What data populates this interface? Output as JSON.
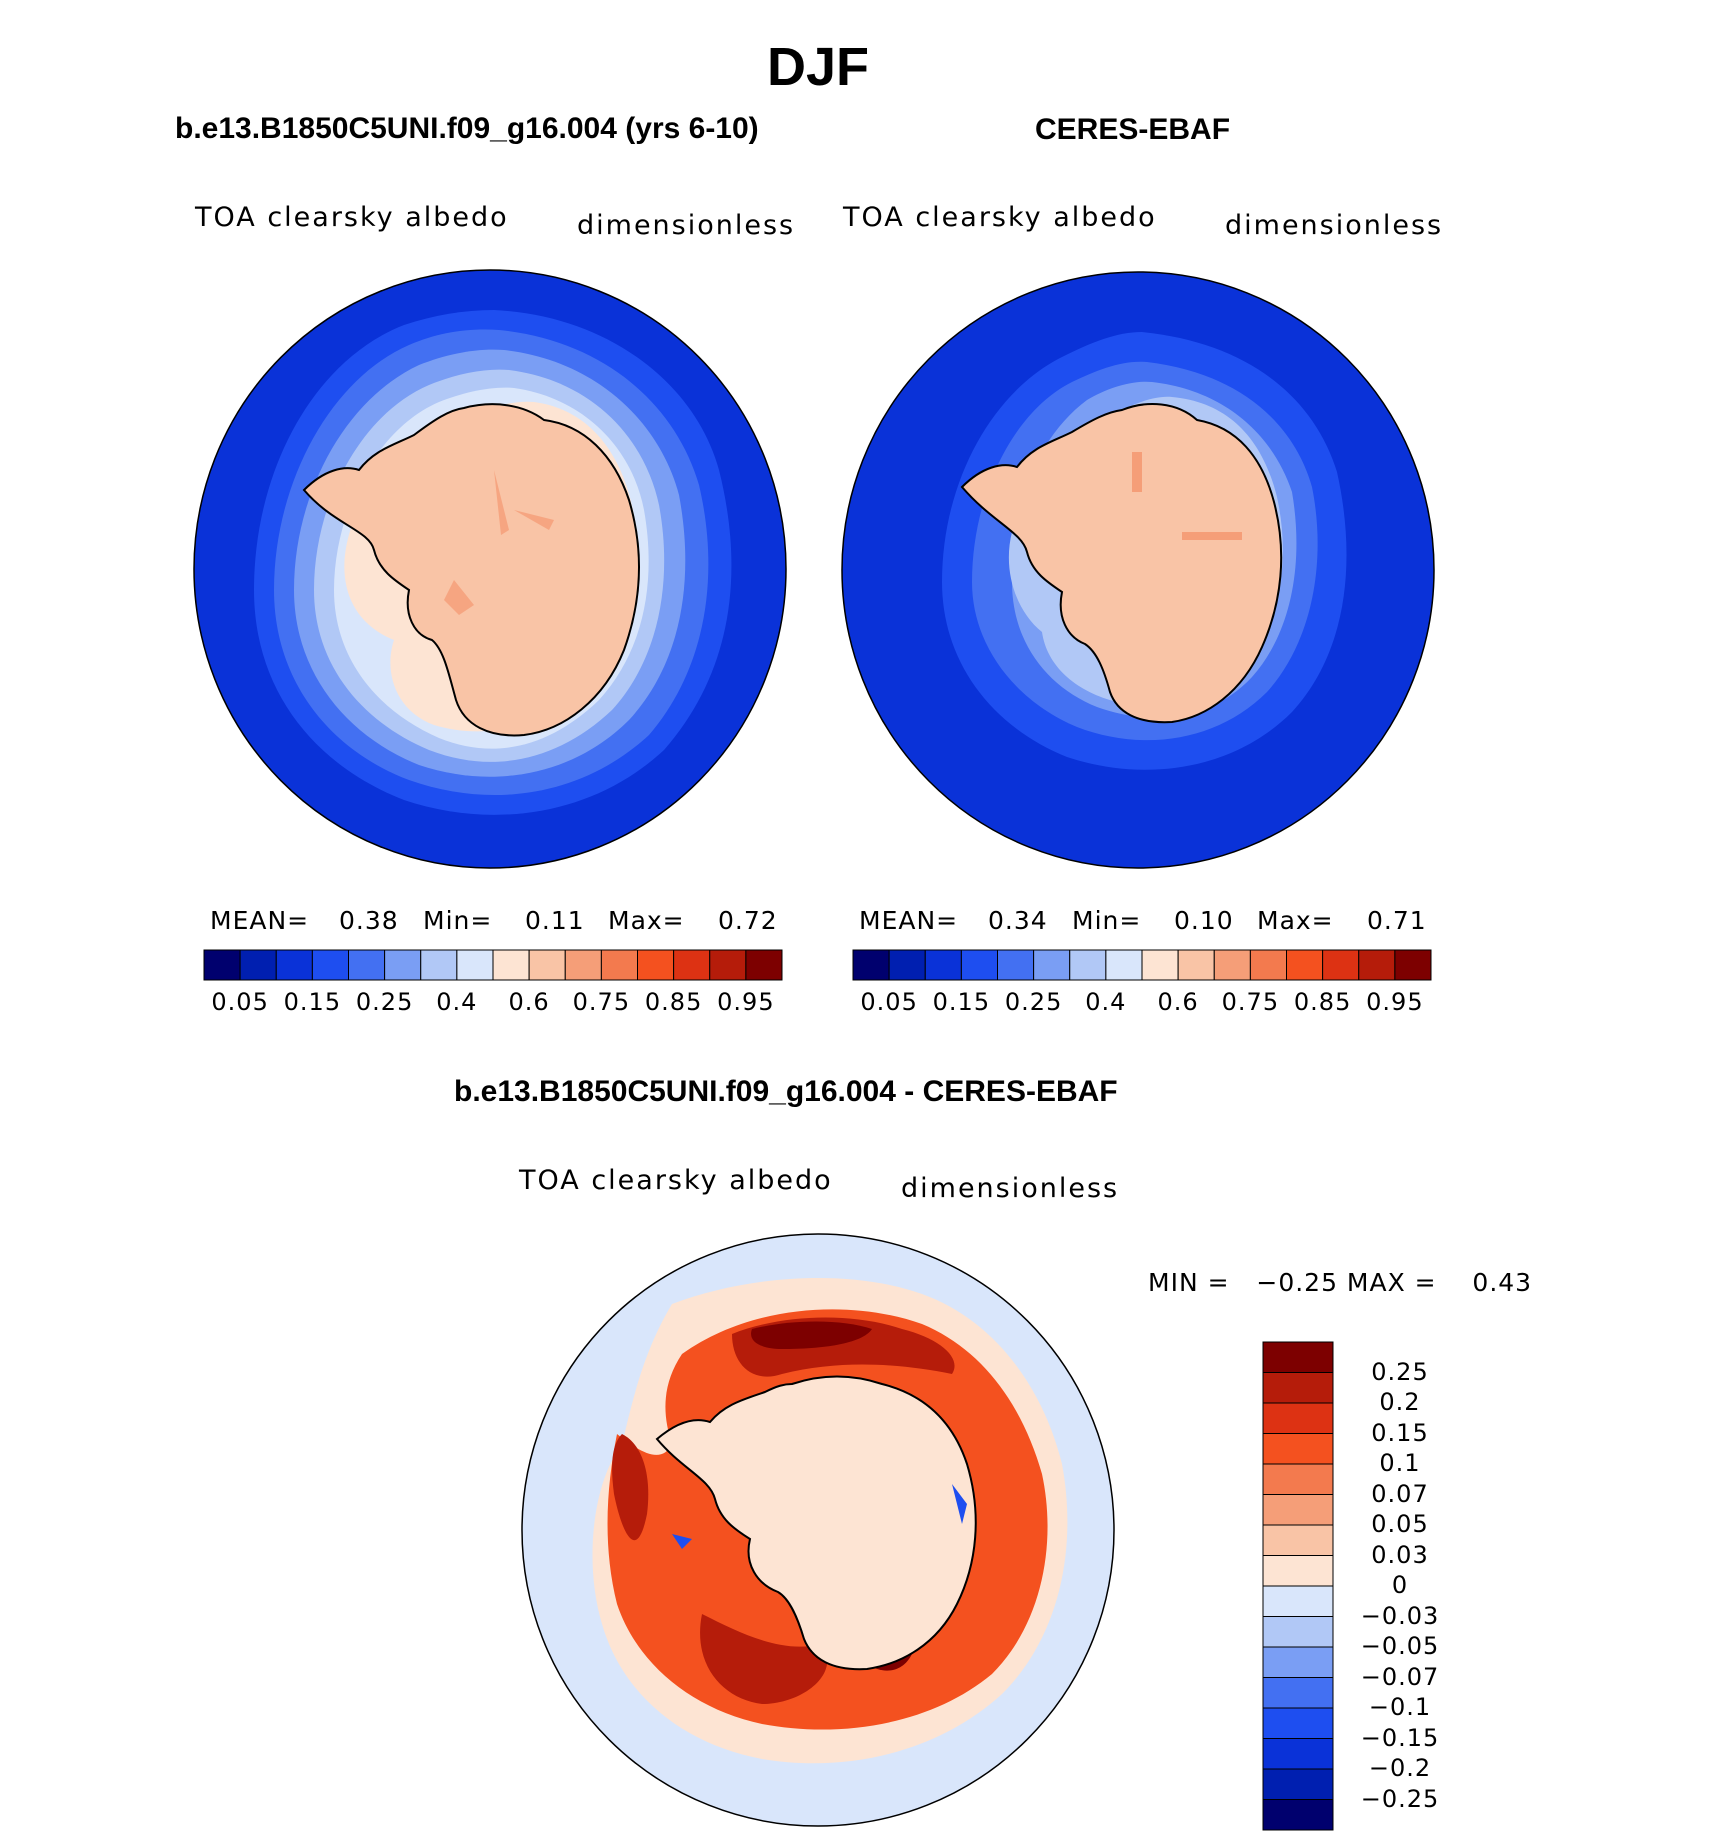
{
  "page": {
    "title": "DJF",
    "diff_title": "b.e13.B1850C5UNI.f09_g16.004 - CERES-EBAF"
  },
  "panels": [
    {
      "heading": "b.e13.B1850C5UNI.f09_g16.004 (yrs 6-10)",
      "variable": "TOA clearsky albedo",
      "units": "dimensionless",
      "mean_label": "MEAN=",
      "mean": "0.38",
      "min_label": "Min=",
      "min": "0.11",
      "max_label": "Max=",
      "max": "0.72"
    },
    {
      "heading": "CERES-EBAF",
      "variable": "TOA clearsky albedo",
      "units": "dimensionless",
      "mean_label": "MEAN=",
      "mean": "0.34",
      "min_label": "Min=",
      "min": "0.10",
      "max_label": "Max=",
      "max": "0.71"
    }
  ],
  "diff_panel": {
    "variable": "TOA clearsky albedo",
    "units": "dimensionless",
    "minmax": "MIN =   −0.25 MAX =    0.43"
  },
  "albedo_colorbar": {
    "colors": [
      "#00006e",
      "#001fb0",
      "#0a32d8",
      "#1e4ef0",
      "#4370f2",
      "#7a9ef4",
      "#b1c8f6",
      "#d9e6fb",
      "#fde4d3",
      "#f9c4a6",
      "#f59e78",
      "#f37a4e",
      "#f4511f",
      "#dd3213",
      "#b51c0a",
      "#7d0000"
    ],
    "labels": [
      "0.05",
      "0.15",
      "0.25",
      "0.4",
      "0.6",
      "0.75",
      "0.85",
      "0.95"
    ]
  },
  "diff_colorbar": {
    "colors": [
      "#7d0000",
      "#b51c0a",
      "#dd3213",
      "#f4511f",
      "#f37a4e",
      "#f59e78",
      "#f9c4a6",
      "#fde4d3",
      "#d9e6fb",
      "#b1c8f6",
      "#7a9ef4",
      "#4370f2",
      "#1e4ef0",
      "#0a32d8",
      "#001fb0",
      "#00006e"
    ],
    "labels": [
      "0.25",
      "0.2",
      "0.15",
      "0.1",
      "0.07",
      "0.05",
      "0.03",
      "0",
      "−0.03",
      "−0.05",
      "−0.07",
      "−0.1",
      "−0.15",
      "−0.2",
      "−0.25"
    ]
  }
}
